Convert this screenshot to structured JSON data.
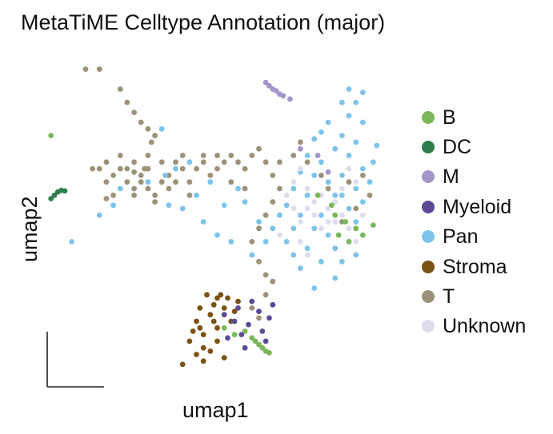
{
  "chart_data": {
    "type": "scatter",
    "title": "MetaTiME Celltype Annotation (major)",
    "xlabel": "umap1",
    "ylabel": "umap2",
    "xlim": [
      0,
      100
    ],
    "ylim": [
      0,
      100
    ],
    "grid": false,
    "legend_position": "right",
    "series": [
      {
        "name": "B",
        "color": "#7ab85a",
        "points": [
          [
            2,
            76
          ],
          [
            60,
            15
          ],
          [
            61,
            14
          ],
          [
            62,
            13
          ],
          [
            63,
            12
          ],
          [
            64,
            11
          ],
          [
            65,
            10.5
          ],
          [
            52,
            18
          ],
          [
            55,
            16
          ],
          [
            58,
            17
          ],
          [
            84,
            52
          ],
          [
            87,
            50
          ],
          [
            90,
            48
          ],
          [
            92,
            46
          ],
          [
            85,
            46
          ],
          [
            88,
            44
          ],
          [
            79,
            58
          ],
          [
            83,
            55
          ],
          [
            95,
            49
          ]
        ]
      },
      {
        "name": "DC",
        "color": "#2f7d4a",
        "points": [
          [
            2,
            57
          ],
          [
            3,
            58
          ],
          [
            4,
            59
          ],
          [
            5,
            59.5
          ],
          [
            6,
            59.3
          ]
        ]
      },
      {
        "name": "M",
        "color": "#a495c9",
        "points": [
          [
            64,
            92
          ],
          [
            65,
            91
          ],
          [
            66,
            90
          ],
          [
            67,
            89.5
          ],
          [
            68,
            88.5
          ],
          [
            69,
            88
          ],
          [
            71,
            87
          ],
          [
            74,
            72
          ],
          [
            79,
            70
          ],
          [
            82,
            65
          ]
        ]
      },
      {
        "name": "Myeloid",
        "color": "#5c4a96",
        "points": [
          [
            52,
            22
          ],
          [
            55,
            20
          ],
          [
            57,
            16
          ],
          [
            59,
            19
          ],
          [
            62,
            23
          ],
          [
            65,
            21
          ],
          [
            60,
            26
          ],
          [
            56,
            24
          ],
          [
            53,
            15
          ],
          [
            63,
            17
          ],
          [
            66,
            25
          ],
          [
            58,
            12
          ],
          [
            64,
            14
          ]
        ]
      },
      {
        "name": "Pan",
        "color": "#7cc4ec",
        "points": [
          [
            70,
            55
          ],
          [
            72,
            60
          ],
          [
            74,
            65
          ],
          [
            76,
            70
          ],
          [
            78,
            75
          ],
          [
            80,
            68
          ],
          [
            82,
            62
          ],
          [
            84,
            58
          ],
          [
            86,
            64
          ],
          [
            88,
            70
          ],
          [
            90,
            74
          ],
          [
            92,
            80
          ],
          [
            90,
            86
          ],
          [
            88,
            82
          ],
          [
            86,
            76
          ],
          [
            84,
            72
          ],
          [
            82,
            80
          ],
          [
            80,
            77
          ],
          [
            78,
            64
          ],
          [
            76,
            58
          ],
          [
            74,
            52
          ],
          [
            72,
            48
          ],
          [
            70,
            44
          ],
          [
            72,
            40
          ],
          [
            74,
            36
          ],
          [
            76,
            42
          ],
          [
            78,
            48
          ],
          [
            80,
            52
          ],
          [
            82,
            46
          ],
          [
            84,
            42
          ],
          [
            86,
            38
          ],
          [
            88,
            44
          ],
          [
            90,
            50
          ],
          [
            92,
            56
          ],
          [
            94,
            62
          ],
          [
            92,
            66
          ],
          [
            90,
            60
          ],
          [
            88,
            54
          ],
          [
            86,
            58
          ],
          [
            66,
            48
          ],
          [
            68,
            52
          ],
          [
            64,
            44
          ],
          [
            62,
            50
          ],
          [
            60,
            40
          ],
          [
            58,
            56
          ],
          [
            56,
            60
          ],
          [
            52,
            55
          ],
          [
            48,
            62
          ],
          [
            44,
            58
          ],
          [
            40,
            54
          ],
          [
            38,
            66
          ],
          [
            42,
            68
          ],
          [
            46,
            50
          ],
          [
            35,
            64
          ],
          [
            30,
            62
          ],
          [
            36,
            55
          ],
          [
            50,
            46
          ],
          [
            54,
            44
          ],
          [
            20,
            55
          ],
          [
            16,
            52
          ],
          [
            22,
            60
          ],
          [
            8,
            44
          ],
          [
            34,
            78
          ],
          [
            96,
            73
          ],
          [
            92,
            89
          ],
          [
            88,
            90
          ],
          [
            86,
            86
          ],
          [
            80,
            38
          ],
          [
            84,
            33
          ],
          [
            78,
            30
          ],
          [
            90,
            40
          ],
          [
            95,
            68
          ]
        ]
      },
      {
        "name": "Stroma",
        "color": "#7a5213",
        "points": [
          [
            44,
            20
          ],
          [
            46,
            16
          ],
          [
            48,
            22
          ],
          [
            50,
            18
          ],
          [
            52,
            24
          ],
          [
            54,
            20
          ],
          [
            56,
            26
          ],
          [
            45,
            24
          ],
          [
            47,
            28
          ],
          [
            49,
            25
          ],
          [
            51,
            28
          ],
          [
            53,
            27
          ],
          [
            55,
            23
          ],
          [
            43,
            17
          ],
          [
            46,
            12
          ],
          [
            50,
            14
          ],
          [
            44,
            10
          ],
          [
            40,
            7
          ],
          [
            42,
            14
          ],
          [
            48,
            11
          ],
          [
            52,
            9
          ],
          [
            46,
            8
          ],
          [
            50,
            27
          ],
          [
            45,
            18
          ],
          [
            49,
            20
          ]
        ]
      },
      {
        "name": "T",
        "color": "#9c9279",
        "points": [
          [
            12,
            96
          ],
          [
            16,
            96
          ],
          [
            22,
            90
          ],
          [
            24,
            86
          ],
          [
            26,
            83
          ],
          [
            28,
            80
          ],
          [
            30,
            78
          ],
          [
            31,
            74
          ],
          [
            32,
            76
          ],
          [
            30,
            70
          ],
          [
            29,
            66
          ],
          [
            28,
            62
          ],
          [
            26,
            58
          ],
          [
            24,
            62
          ],
          [
            22,
            66
          ],
          [
            20,
            64
          ],
          [
            18,
            62
          ],
          [
            16,
            66
          ],
          [
            18,
            68
          ],
          [
            22,
            70
          ],
          [
            26,
            68
          ],
          [
            30,
            66
          ],
          [
            34,
            68
          ],
          [
            36,
            64
          ],
          [
            38,
            68
          ],
          [
            40,
            66
          ],
          [
            42,
            62
          ],
          [
            40,
            70
          ],
          [
            44,
            66
          ],
          [
            46,
            68
          ],
          [
            48,
            64
          ],
          [
            50,
            66
          ],
          [
            52,
            68
          ],
          [
            54,
            70
          ],
          [
            56,
            68
          ],
          [
            58,
            66
          ],
          [
            60,
            70
          ],
          [
            62,
            72
          ],
          [
            64,
            68
          ],
          [
            66,
            64
          ],
          [
            68,
            60
          ],
          [
            66,
            56
          ],
          [
            64,
            52
          ],
          [
            62,
            48
          ],
          [
            60,
            44
          ],
          [
            62,
            38
          ],
          [
            64,
            34
          ],
          [
            66,
            32
          ],
          [
            64,
            28
          ],
          [
            60,
            24
          ],
          [
            62,
            21
          ],
          [
            30,
            60
          ],
          [
            32,
            58
          ],
          [
            34,
            62
          ],
          [
            36,
            60
          ],
          [
            28,
            64
          ],
          [
            26,
            65
          ],
          [
            24,
            66
          ],
          [
            14,
            66
          ],
          [
            20,
            58
          ],
          [
            18,
            57
          ],
          [
            32,
            56
          ],
          [
            38,
            62
          ],
          [
            42,
            58
          ],
          [
            46,
            70
          ],
          [
            50,
            70
          ],
          [
            54,
            62
          ],
          [
            58,
            60
          ],
          [
            68,
            68
          ],
          [
            72,
            70
          ],
          [
            74,
            74
          ],
          [
            76,
            68
          ],
          [
            80,
            64
          ],
          [
            82,
            60
          ],
          [
            86,
            50
          ],
          [
            90,
            54
          ],
          [
            94,
            58
          ],
          [
            92,
            64
          ],
          [
            88,
            62
          ],
          [
            26,
            60
          ]
        ]
      },
      {
        "name": "Unknown",
        "color": "#dedded",
        "points": [
          [
            74,
            50
          ],
          [
            76,
            54
          ],
          [
            78,
            56
          ],
          [
            80,
            58
          ],
          [
            82,
            54
          ],
          [
            84,
            50
          ],
          [
            86,
            52
          ],
          [
            88,
            48
          ],
          [
            90,
            44
          ],
          [
            72,
            62
          ],
          [
            74,
            66
          ],
          [
            76,
            60
          ],
          [
            78,
            52
          ],
          [
            80,
            48
          ],
          [
            82,
            50
          ],
          [
            84,
            56
          ],
          [
            86,
            60
          ],
          [
            88,
            66
          ],
          [
            90,
            62
          ],
          [
            92,
            52
          ],
          [
            70,
            58
          ],
          [
            72,
            54
          ],
          [
            68,
            46
          ],
          [
            74,
            44
          ],
          [
            76,
            40
          ]
        ]
      }
    ]
  }
}
